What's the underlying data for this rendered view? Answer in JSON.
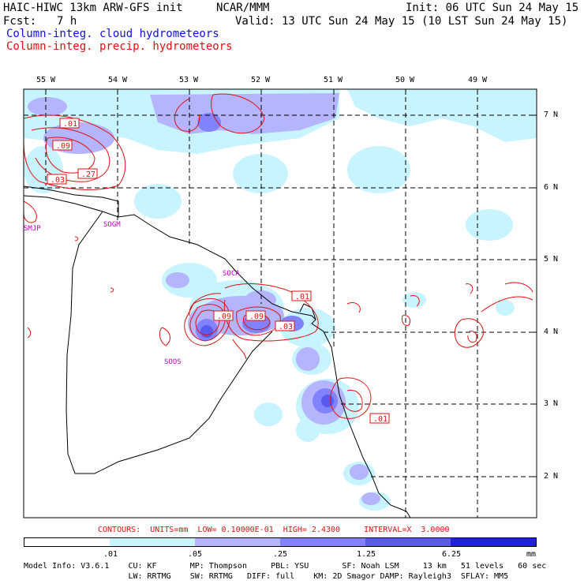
{
  "header": {
    "title": "HAIC-HIWC 13km ARW-GFS init",
    "org": "NCAR/MMM",
    "init": "Init: 06 UTC Sun 24 May 15",
    "fcst_label": "Fcst:",
    "fcst_value": "7 h",
    "valid": "Valid: 13 UTC Sun 24 May 15 (10 LST Sun 24 May 15)",
    "field_cloud": "Column-integ. cloud hydrometeors",
    "field_precip": "Column-integ. precip. hydrometeors"
  },
  "map": {
    "lon_labels": [
      "55 W",
      "54 W",
      "53 W",
      "52 W",
      "51 W",
      "50 W",
      "49 W"
    ],
    "lat_labels": [
      "7 N",
      "6 N",
      "5 N",
      "4 N",
      "3 N",
      "2 N"
    ],
    "stations": [
      "SMJP",
      "SOGM",
      "SOCA",
      "SOOS"
    ],
    "contour_labels": [
      ".01",
      ".09",
      ".03",
      ".27",
      ".01",
      ".09",
      ".09",
      ".03",
      ".01"
    ]
  },
  "contours_note": "CONTOURS:  UNITS=mm  LOW= 0.10000E-01  HIGH= 2.4300     INTERVAL=X  3.0000",
  "legend": {
    "colors": [
      "#ffffff",
      "#c8f4ff",
      "#b4b4ff",
      "#8282ff",
      "#5a5af0",
      "#2020e0"
    ],
    "labels": [
      ".01",
      ".05",
      ".25",
      "1.25",
      "6.25",
      "mm"
    ]
  },
  "footer": {
    "line1": "Model Info: V3.6.1    CU: KF       MP: Thompson     PBL: YSU       SF: Noah LSM     13 km   51 levels   60 sec",
    "line2": "                      LW: RRTMG    SW: RRTMG   DIFF: full    KM: 2D Smagor DAMP: Rayleigh3  SFLAY: MM5"
  }
}
